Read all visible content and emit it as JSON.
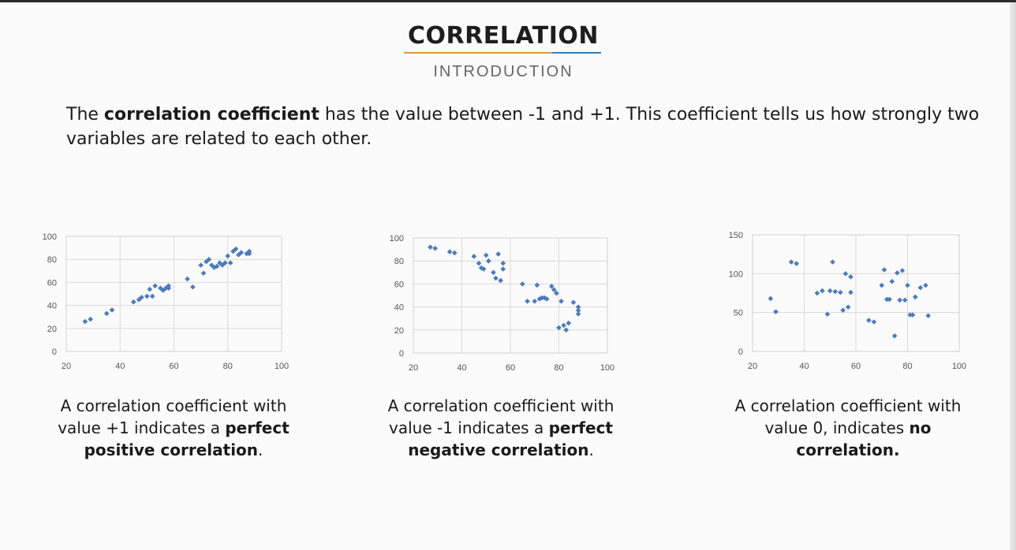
{
  "header": {
    "title": "CORRELATION",
    "subtitle": "INTRODUCTION",
    "underline_colors": [
      "#e8924a",
      "#2f7fc2"
    ]
  },
  "intro": {
    "before": "The ",
    "bold": "correlation coefficient",
    "after": " has the value between -1 and +1. This coefficient tells us how strongly two variables are related to each other."
  },
  "captions": [
    {
      "line1": "A correlation coefficient with",
      "line2_pre": "value +1 indicates a ",
      "line2_bold": "perfect",
      "line3_bold": "positive correlation",
      "line3_post": "."
    },
    {
      "line1": "A correlation coefficient with",
      "line2_pre": "value -1 indicates a ",
      "line2_bold": "perfect",
      "line3_bold": "negative correlation",
      "line3_post": "."
    },
    {
      "line1": "A correlation coefficient with",
      "line2_pre": "value 0, indicates ",
      "line2_bold": "no",
      "line3_bold": "correlation.",
      "line3_post": ""
    }
  ],
  "marker_color": "#4b7bbd",
  "chart_data": [
    {
      "type": "scatter",
      "title": "",
      "xlabel": "",
      "ylabel": "",
      "xlim": [
        20,
        100
      ],
      "ylim": [
        0,
        100
      ],
      "xticks": [
        20,
        40,
        60,
        80,
        100
      ],
      "yticks": [
        0,
        20,
        40,
        60,
        80,
        100
      ],
      "grid": true,
      "series": [
        {
          "points": [
            [
              27,
              26
            ],
            [
              29,
              28
            ],
            [
              35,
              33
            ],
            [
              37,
              36
            ],
            [
              45,
              43
            ],
            [
              47,
              45
            ],
            [
              48,
              47
            ],
            [
              50,
              48
            ],
            [
              51,
              54
            ],
            [
              52,
              48
            ],
            [
              53,
              57
            ],
            [
              55,
              55
            ],
            [
              56,
              53
            ],
            [
              57,
              55
            ],
            [
              58,
              57
            ],
            [
              58,
              55
            ],
            [
              65,
              63
            ],
            [
              67,
              56
            ],
            [
              70,
              75
            ],
            [
              71,
              68
            ],
            [
              72,
              78
            ],
            [
              73,
              80
            ],
            [
              74,
              75
            ],
            [
              75,
              73
            ],
            [
              76,
              74
            ],
            [
              77,
              77
            ],
            [
              78,
              75
            ],
            [
              79,
              77
            ],
            [
              80,
              83
            ],
            [
              81,
              77
            ],
            [
              82,
              87
            ],
            [
              83,
              89
            ],
            [
              84,
              84
            ],
            [
              85,
              86
            ],
            [
              87,
              85
            ],
            [
              88,
              87
            ],
            [
              88,
              85
            ]
          ]
        }
      ]
    },
    {
      "type": "scatter",
      "title": "",
      "xlabel": "",
      "ylabel": "",
      "xlim": [
        20,
        100
      ],
      "ylim": [
        0,
        100
      ],
      "xticks": [
        20,
        40,
        60,
        80,
        100
      ],
      "yticks": [
        0,
        20,
        40,
        60,
        80,
        100
      ],
      "grid": true,
      "series": [
        {
          "points": [
            [
              27,
              92
            ],
            [
              29,
              91
            ],
            [
              35,
              88
            ],
            [
              37,
              87
            ],
            [
              45,
              84
            ],
            [
              47,
              78
            ],
            [
              48,
              74
            ],
            [
              49,
              73
            ],
            [
              50,
              85
            ],
            [
              51,
              80
            ],
            [
              53,
              70
            ],
            [
              54,
              65
            ],
            [
              55,
              86
            ],
            [
              56,
              63
            ],
            [
              57,
              78
            ],
            [
              57,
              73
            ],
            [
              65,
              60
            ],
            [
              67,
              45
            ],
            [
              70,
              45
            ],
            [
              71,
              59
            ],
            [
              72,
              47
            ],
            [
              73,
              48
            ],
            [
              74,
              48
            ],
            [
              75,
              47
            ],
            [
              77,
              58
            ],
            [
              78,
              55
            ],
            [
              79,
              52
            ],
            [
              80,
              22
            ],
            [
              81,
              45
            ],
            [
              82,
              24
            ],
            [
              83,
              20
            ],
            [
              84,
              26
            ],
            [
              86,
              44
            ],
            [
              88,
              37
            ],
            [
              88,
              34
            ],
            [
              88,
              40
            ]
          ]
        }
      ]
    },
    {
      "type": "scatter",
      "title": "",
      "xlabel": "",
      "ylabel": "",
      "xlim": [
        20,
        100
      ],
      "ylim": [
        0,
        150
      ],
      "xticks": [
        20,
        40,
        60,
        80,
        100
      ],
      "yticks": [
        0,
        50,
        100,
        150
      ],
      "grid": true,
      "series": [
        {
          "points": [
            [
              27,
              68
            ],
            [
              29,
              51
            ],
            [
              35,
              115
            ],
            [
              37,
              113
            ],
            [
              45,
              75
            ],
            [
              47,
              78
            ],
            [
              49,
              48
            ],
            [
              50,
              78
            ],
            [
              51,
              115
            ],
            [
              52,
              77
            ],
            [
              54,
              76
            ],
            [
              55,
              53
            ],
            [
              56,
              100
            ],
            [
              57,
              57
            ],
            [
              58,
              96
            ],
            [
              58,
              76
            ],
            [
              65,
              40
            ],
            [
              67,
              38
            ],
            [
              70,
              85
            ],
            [
              71,
              105
            ],
            [
              72,
              67
            ],
            [
              73,
              67
            ],
            [
              74,
              90
            ],
            [
              75,
              20
            ],
            [
              76,
              101
            ],
            [
              77,
              66
            ],
            [
              78,
              104
            ],
            [
              79,
              66
            ],
            [
              80,
              85
            ],
            [
              81,
              47
            ],
            [
              82,
              47
            ],
            [
              83,
              70
            ],
            [
              85,
              82
            ],
            [
              87,
              85
            ],
            [
              88,
              46
            ]
          ]
        }
      ]
    }
  ]
}
